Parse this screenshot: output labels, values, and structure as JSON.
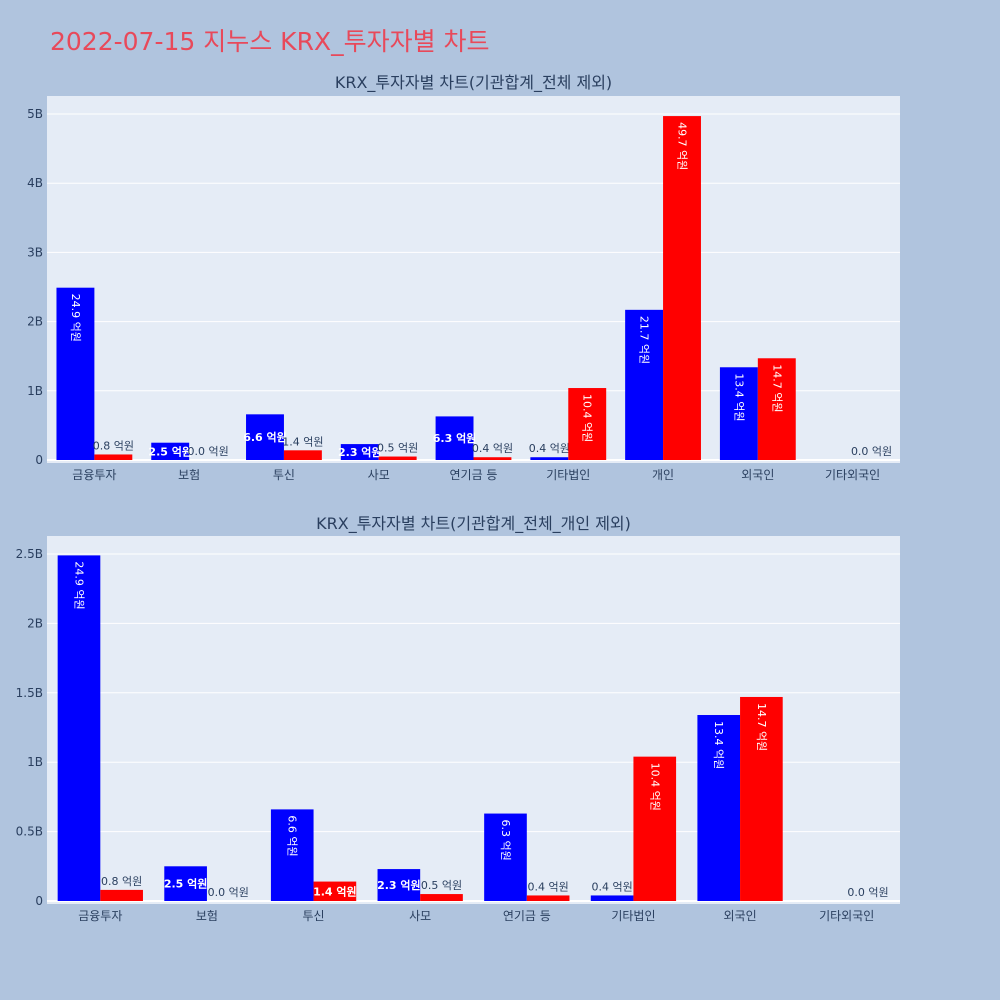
{
  "page_title": "2022-07-15 지누스 KRX_투자자별 차트",
  "colors": {
    "background": "#b0c4de",
    "plot_bg": "#e5ecf6",
    "title": "#e8495a",
    "buy": "#0000ff",
    "sell": "#ff0000"
  },
  "chart_data": [
    {
      "type": "bar",
      "title": "KRX_투자자별 차트(기관합계_전체 제외)",
      "categories": [
        "금융투자",
        "보험",
        "투신",
        "사모",
        "연기금 등",
        "기타법인",
        "개인",
        "외국인",
        "기타외국인"
      ],
      "y_ticks": [
        "0",
        "1B",
        "2B",
        "3B",
        "4B",
        "5B"
      ],
      "ylim": [
        0,
        5000000000
      ],
      "grid": true,
      "series": [
        {
          "color": "#0000ff",
          "values": [
            2490000000,
            250000000,
            660000000,
            230000000,
            630000000,
            40000000,
            2170000000,
            1340000000,
            0
          ],
          "labels": [
            "24.9 억원",
            "2.5 억원",
            "6.6 억원",
            "2.3 억원",
            "6.3 억원",
            "0.4 억원",
            "21.7 억원",
            "13.4 억원",
            ""
          ]
        },
        {
          "color": "#ff0000",
          "values": [
            80000000,
            0,
            140000000,
            50000000,
            40000000,
            1040000000,
            4970000000,
            1470000000,
            0
          ],
          "labels": [
            "0.8 억원",
            "0.0 억원",
            "1.4 억원",
            "0.5 억원",
            "0.4 억원",
            "10.4 억원",
            "49.7 억원",
            "14.7 억원",
            "0.0 억원"
          ]
        }
      ]
    },
    {
      "type": "bar",
      "title": "KRX_투자자별 차트(기관합계_전체_개인 제외)",
      "categories": [
        "금융투자",
        "보험",
        "투신",
        "사모",
        "연기금 등",
        "기타법인",
        "외국인",
        "기타외국인"
      ],
      "y_ticks": [
        "0",
        "0.5B",
        "1B",
        "1.5B",
        "2B",
        "2.5B"
      ],
      "ylim": [
        0,
        2500000000
      ],
      "grid": true,
      "series": [
        {
          "color": "#0000ff",
          "values": [
            2490000000,
            250000000,
            660000000,
            230000000,
            630000000,
            40000000,
            1340000000,
            0
          ],
          "labels": [
            "24.9 억원",
            "2.5 억원",
            "6.6 억원",
            "2.3 억원",
            "6.3 억원",
            "0.4 억원",
            "13.4 억원",
            ""
          ]
        },
        {
          "color": "#ff0000",
          "values": [
            80000000,
            0,
            140000000,
            50000000,
            40000000,
            1040000000,
            1470000000,
            0
          ],
          "labels": [
            "0.8 억원",
            "0.0 억원",
            "1.4 억원",
            "0.5 억원",
            "0.4 억원",
            "10.4 억원",
            "14.7 억원",
            "0.0 억원"
          ]
        }
      ]
    }
  ]
}
